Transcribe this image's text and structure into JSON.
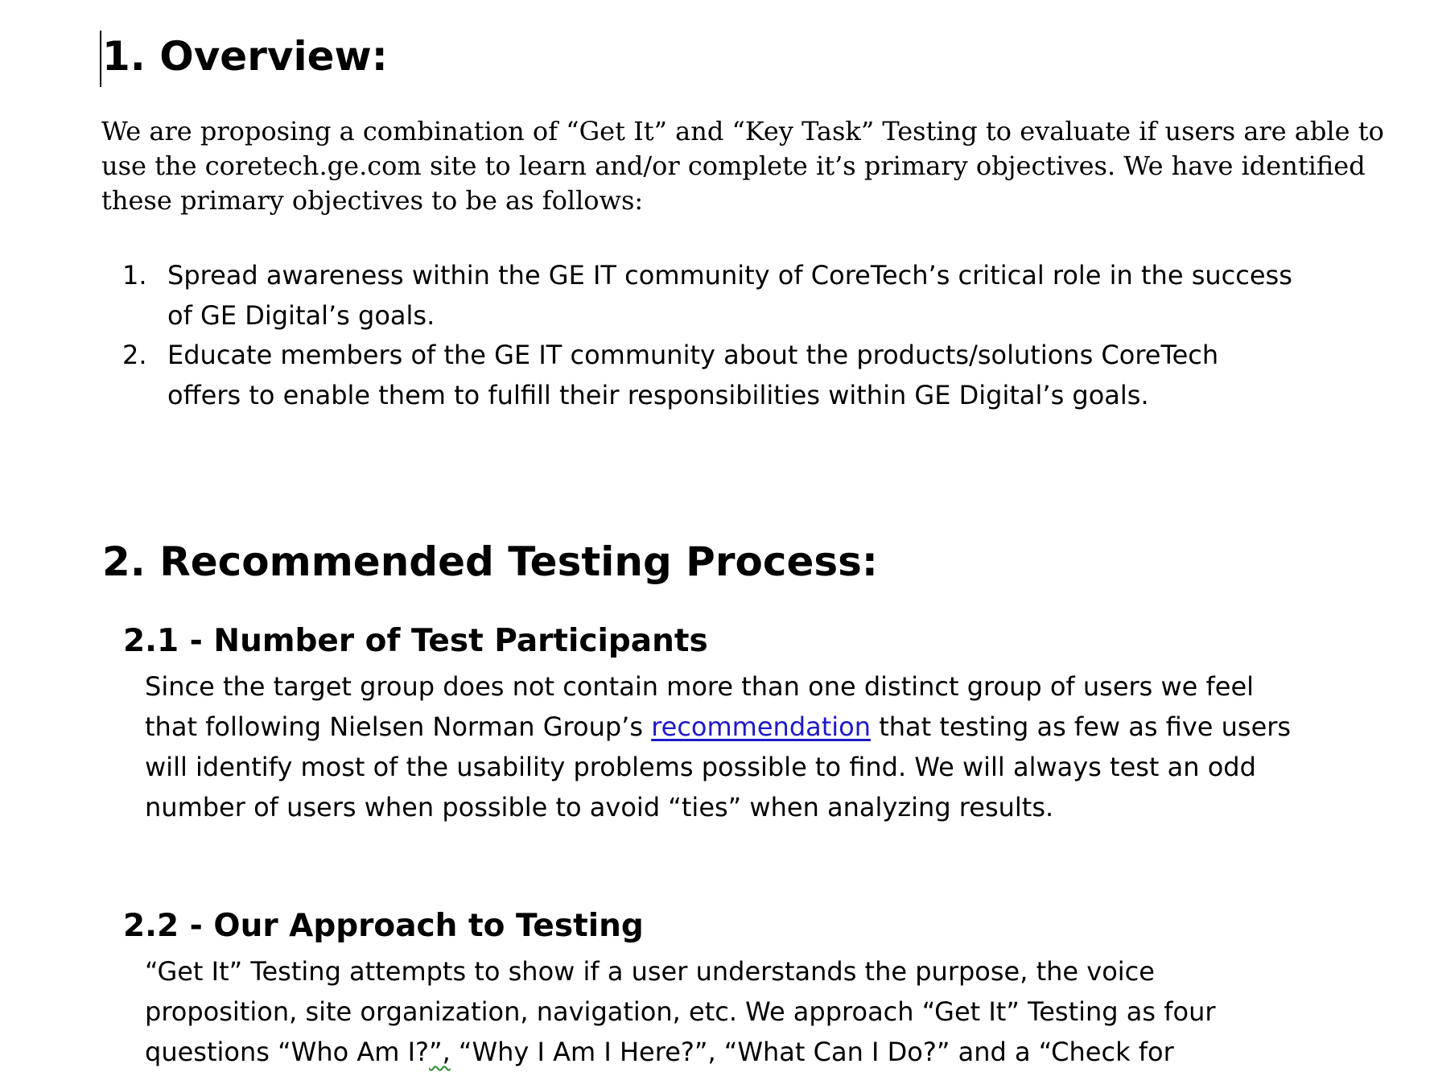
{
  "overview": {
    "heading": "1. Overview:",
    "intro_lines": [
      "We are proposing a combination of “Get It” and “Key Task” Testing to evaluate if users are able to",
      "use the coretech.ge.com site to learn and/or complete it’s primary objectives. We have identified",
      "these primary objectives to be as follows:"
    ],
    "objectives": [
      {
        "number": "1.",
        "lines": [
          "Spread awareness within the GE IT community of CoreTech’s critical role in the success",
          "of GE Digital’s goals."
        ]
      },
      {
        "number": "2.",
        "lines": [
          "Educate members of the GE IT community about the products/solutions CoreTech",
          "offers to enable them to fulfill their responsibilities within GE Digital’s goals."
        ]
      }
    ]
  },
  "process": {
    "heading": "2. Recommended Testing Process:",
    "participants": {
      "heading": "2.1  - Number of Test Participants",
      "line1": "Since the target group does not contain more than one distinct group of users we feel",
      "line2_before": "that following Nielsen Norman Group’s ",
      "line2_link": "recommendation",
      "line2_after": " that testing as few as five users",
      "line3": "will identify most of the usability problems possible to find. We will always test an odd",
      "line4": "number of users when possible to avoid “ties” when analyzing results."
    },
    "approach": {
      "heading": "2.2  - Our Approach to Testing",
      "line1": "“Get It” Testing attempts to show if a user understands the purpose, the voice",
      "line2": "proposition, site organization, navigation, etc.  We approach “Get It” Testing as four",
      "line3_before": "questions “Who Am I?",
      "line3_flagged": "”,",
      "line3_after": " “Why I Am I Here?”, “What Can I Do?” and a “Check for"
    }
  }
}
